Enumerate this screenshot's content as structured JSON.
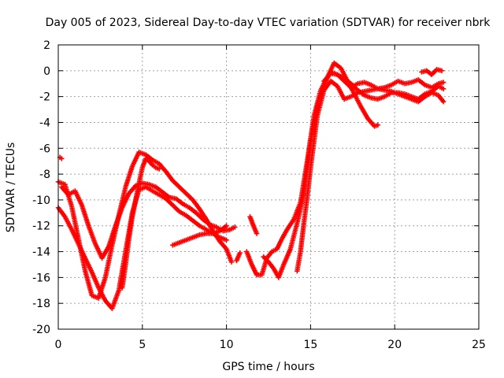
{
  "chart_data": {
    "type": "scatter",
    "title": "Day 005 of 2023, Sidereal Day-to-day VTEC variation (SDTVAR) for receiver nbrk",
    "xlabel": "GPS time / hours",
    "ylabel": "SDTVAR / TECUs",
    "xlim": [
      0,
      25
    ],
    "ylim": [
      -20,
      2
    ],
    "xticks": [
      0,
      5,
      10,
      15,
      20,
      25
    ],
    "yticks": [
      -20,
      -18,
      -16,
      -14,
      -12,
      -10,
      -8,
      -6,
      -4,
      -2,
      0,
      2
    ],
    "xtick_labels": [
      "0",
      "5",
      "10",
      "15",
      "20",
      "25"
    ],
    "ytick_labels": [
      "-20",
      "-18",
      "-16",
      "-14",
      "-12",
      "-10",
      "-8",
      "-6",
      "-4",
      "-2",
      "0",
      "2"
    ],
    "grid": true,
    "marker": "+",
    "color": "#ff0000",
    "series": [
      {
        "x": [
          0.1,
          0.2
        ],
        "y": [
          -6.7,
          -6.8
        ]
      },
      {
        "x": [
          0.0,
          0.4,
          0.8,
          1.2,
          1.6,
          2.0,
          2.4,
          2.8,
          3.2,
          3.6,
          4.0,
          4.4,
          4.8,
          5.2,
          5.6,
          6.0,
          6.4,
          6.8,
          7.2,
          7.6,
          8.0,
          8.4,
          8.8,
          9.2,
          9.6,
          10.0,
          10.3
        ],
        "y": [
          -8.6,
          -8.8,
          -10.5,
          -13.0,
          -15.5,
          -17.4,
          -17.6,
          -16.0,
          -13.5,
          -11.2,
          -9.0,
          -7.4,
          -6.3,
          -6.5,
          -6.9,
          -7.2,
          -7.8,
          -8.5,
          -9.0,
          -9.5,
          -10.0,
          -10.7,
          -11.5,
          -12.4,
          -13.2,
          -13.8,
          -14.8
        ]
      },
      {
        "x": [
          0.0,
          0.4,
          0.8,
          1.2,
          1.6,
          2.0,
          2.4,
          2.8,
          3.2,
          3.6,
          4.0,
          4.4,
          4.8,
          5.2,
          5.6,
          6.0,
          6.4,
          6.8,
          7.2,
          7.6,
          8.0,
          8.4,
          8.8,
          9.2,
          9.6,
          10.0
        ],
        "y": [
          -10.6,
          -11.3,
          -12.3,
          -13.4,
          -14.5,
          -15.6,
          -16.8,
          -17.8,
          -18.4,
          -17.0,
          -14.0,
          -11.0,
          -9.2,
          -9.0,
          -9.3,
          -9.6,
          -9.9,
          -10.4,
          -10.9,
          -11.2,
          -11.6,
          -12.0,
          -12.3,
          -12.6,
          -12.9,
          -13.1
        ]
      },
      {
        "x": [
          0.2,
          0.6,
          1.0,
          1.4,
          1.8,
          2.2,
          2.6,
          3.0,
          3.4,
          3.8,
          4.2,
          4.6,
          5.0,
          5.4,
          5.8,
          6.2,
          6.6,
          7.0,
          7.4,
          7.8,
          8.2,
          8.6,
          9.0,
          9.4,
          9.8,
          10.2,
          10.5
        ],
        "y": [
          -9.0,
          -9.6,
          -9.3,
          -10.4,
          -12.0,
          -13.4,
          -14.5,
          -13.6,
          -12.0,
          -10.6,
          -9.5,
          -8.9,
          -8.7,
          -8.8,
          -9.0,
          -9.4,
          -9.8,
          -9.9,
          -10.3,
          -10.6,
          -11.0,
          -11.5,
          -11.9,
          -12.1,
          -12.4,
          -12.3,
          -12.1
        ]
      },
      {
        "x": [
          3.8,
          4.0,
          4.2,
          4.4,
          4.6,
          4.8,
          5.0,
          5.2,
          5.4,
          5.6,
          5.8,
          6.0
        ],
        "y": [
          -16.8,
          -15.0,
          -13.0,
          -11.3,
          -10.0,
          -8.7,
          -7.5,
          -6.8,
          -7.0,
          -7.3,
          -7.5,
          -7.6
        ]
      },
      {
        "x": [
          6.8,
          7.2,
          7.6,
          8.0,
          8.4,
          8.8,
          9.2,
          9.6,
          10.0
        ],
        "y": [
          -13.5,
          -13.3,
          -13.1,
          -12.9,
          -12.7,
          -12.6,
          -12.6,
          -12.4,
          -12.0
        ]
      },
      {
        "x": [
          10.6,
          10.8
        ],
        "y": [
          -14.7,
          -14.1
        ]
      },
      {
        "x": [
          11.4,
          11.6,
          11.8
        ],
        "y": [
          -11.3,
          -12.0,
          -12.6
        ]
      },
      {
        "x": [
          11.2,
          11.5,
          11.8,
          12.1,
          12.4,
          12.7,
          13.0,
          13.3,
          13.6,
          14.0,
          14.4,
          14.8,
          15.2,
          15.6,
          16.0,
          16.4,
          16.8,
          17.2,
          17.6,
          18.0,
          18.4,
          18.8,
          19.0
        ],
        "y": [
          -14.0,
          -15.0,
          -15.8,
          -15.8,
          -14.5,
          -14.0,
          -13.8,
          -13.0,
          -12.3,
          -11.5,
          -10.2,
          -7.0,
          -3.5,
          -1.5,
          -0.5,
          0.6,
          0.2,
          -0.8,
          -1.8,
          -2.8,
          -3.7,
          -4.3,
          -4.2
        ]
      },
      {
        "x": [
          12.2,
          12.5,
          12.8,
          13.1,
          13.4,
          13.8,
          14.2,
          14.6,
          15.0,
          15.4,
          15.8,
          16.2,
          16.6,
          17.0,
          17.4,
          17.8,
          18.2,
          18.6,
          19.0,
          19.4,
          19.8,
          20.2,
          20.6,
          21.0,
          21.4,
          21.8,
          22.2,
          22.6,
          22.9
        ],
        "y": [
          -14.4,
          -14.8,
          -15.3,
          -16.0,
          -15.0,
          -13.8,
          -11.8,
          -9.5,
          -5.5,
          -2.8,
          -1.0,
          -0.1,
          -0.3,
          -0.6,
          -1.0,
          -1.5,
          -1.9,
          -2.1,
          -2.2,
          -2.0,
          -1.7,
          -1.7,
          -1.8,
          -2.0,
          -2.2,
          -1.8,
          -1.6,
          -1.2,
          -1.4
        ]
      },
      {
        "x": [
          14.2,
          14.4,
          14.6,
          14.8,
          15.0,
          15.4,
          15.8,
          16.2,
          16.6,
          17.0,
          17.4,
          17.8,
          18.2,
          18.6,
          19.0,
          19.4,
          19.8,
          20.2,
          20.6,
          21.0,
          21.4,
          21.8,
          22.2,
          22.6,
          22.9
        ],
        "y": [
          -15.5,
          -14.0,
          -11.8,
          -9.8,
          -7.5,
          -3.5,
          -1.5,
          -0.8,
          -1.2,
          -2.2,
          -2.0,
          -1.7,
          -1.6,
          -1.5,
          -1.4,
          -1.5,
          -1.6,
          -1.8,
          -2.0,
          -2.2,
          -2.4,
          -2.0,
          -1.7,
          -1.9,
          -2.4
        ]
      },
      {
        "x": [
          15.8,
          16.2,
          16.6,
          17.0,
          17.4,
          17.8,
          18.2,
          18.6,
          19.0,
          19.4,
          19.8,
          20.2,
          20.6,
          21.0,
          21.4,
          21.8,
          22.2,
          22.6,
          22.9
        ],
        "y": [
          -0.8,
          -0.2,
          -0.3,
          -0.8,
          -1.3,
          -1.0,
          -0.9,
          -1.1,
          -1.4,
          -1.3,
          -1.1,
          -0.8,
          -1.0,
          -0.9,
          -0.7,
          -1.1,
          -1.3,
          -1.0,
          -0.9
        ]
      },
      {
        "x": [
          21.6,
          21.9,
          22.2,
          22.5,
          22.8
        ],
        "y": [
          -0.1,
          0.0,
          -0.3,
          0.1,
          0.0
        ]
      }
    ]
  }
}
